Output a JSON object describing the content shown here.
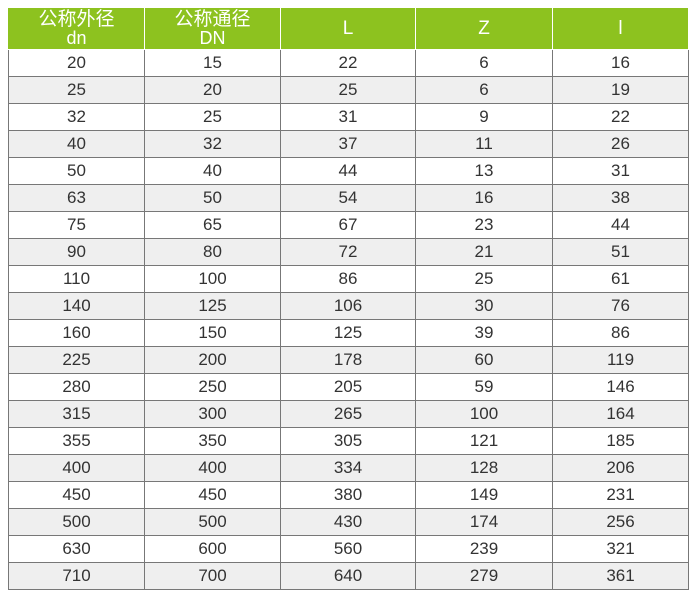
{
  "colors": {
    "header_bg": "#8dc21f",
    "header_text": "#ffffff",
    "alt_row": "#efefef"
  },
  "table": {
    "headers": [
      {
        "label": "公称外径",
        "sub": "dn"
      },
      {
        "label": "公称通径",
        "sub": "DN"
      },
      {
        "label": "L",
        "sub": ""
      },
      {
        "label": "Z",
        "sub": ""
      },
      {
        "label": "l",
        "sub": ""
      }
    ],
    "rows": [
      [
        "20",
        "15",
        "22",
        "6",
        "16"
      ],
      [
        "25",
        "20",
        "25",
        "6",
        "19"
      ],
      [
        "32",
        "25",
        "31",
        "9",
        "22"
      ],
      [
        "40",
        "32",
        "37",
        "11",
        "26"
      ],
      [
        "50",
        "40",
        "44",
        "13",
        "31"
      ],
      [
        "63",
        "50",
        "54",
        "16",
        "38"
      ],
      [
        "75",
        "65",
        "67",
        "23",
        "44"
      ],
      [
        "90",
        "80",
        "72",
        "21",
        "51"
      ],
      [
        "110",
        "100",
        "86",
        "25",
        "61"
      ],
      [
        "140",
        "125",
        "106",
        "30",
        "76"
      ],
      [
        "160",
        "150",
        "125",
        "39",
        "86"
      ],
      [
        "225",
        "200",
        "178",
        "60",
        "119"
      ],
      [
        "280",
        "250",
        "205",
        "59",
        "146"
      ],
      [
        "315",
        "300",
        "265",
        "100",
        "164"
      ],
      [
        "355",
        "350",
        "305",
        "121",
        "185"
      ],
      [
        "400",
        "400",
        "334",
        "128",
        "206"
      ],
      [
        "450",
        "450",
        "380",
        "149",
        "231"
      ],
      [
        "500",
        "500",
        "430",
        "174",
        "256"
      ],
      [
        "630",
        "600",
        "560",
        "239",
        "321"
      ],
      [
        "710",
        "700",
        "640",
        "279",
        "361"
      ]
    ]
  }
}
